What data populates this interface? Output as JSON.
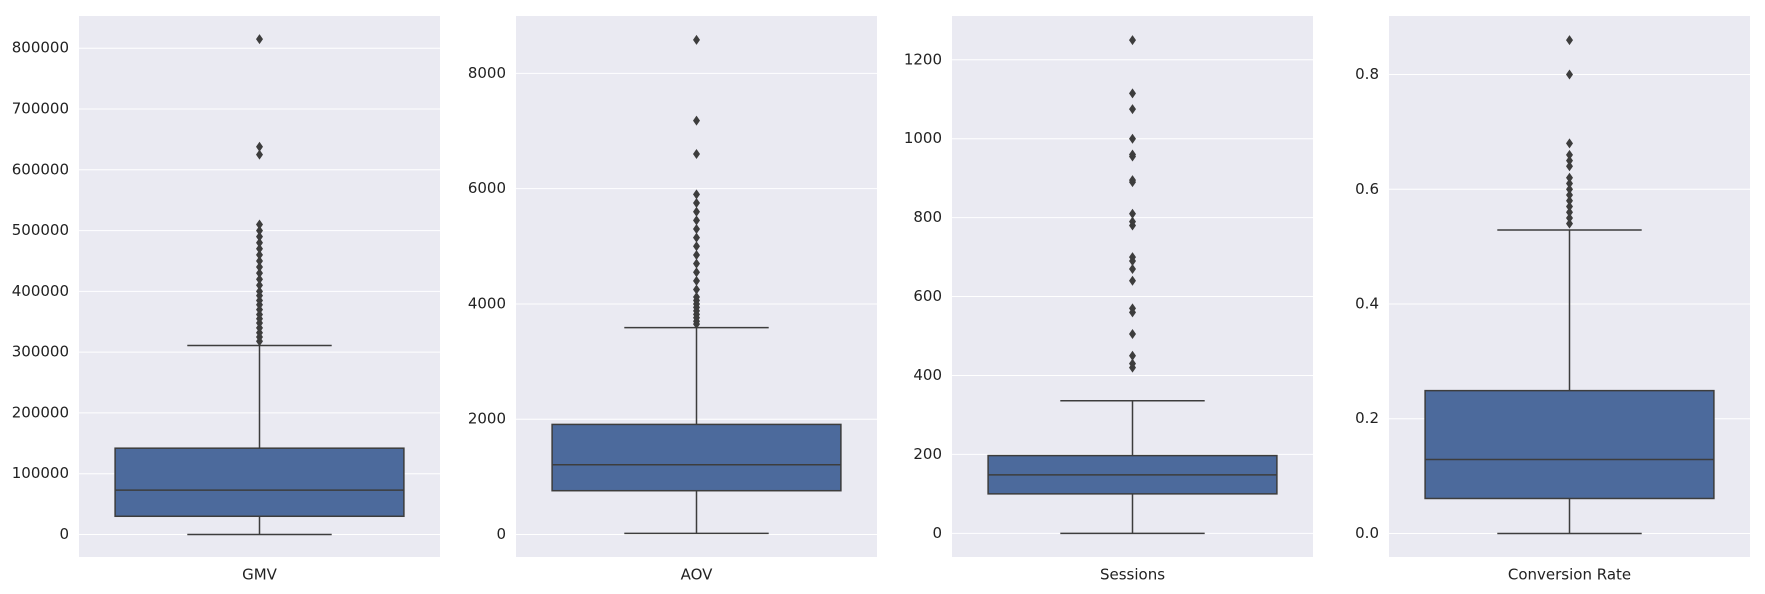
{
  "chart_data": [
    {
      "type": "box",
      "categories": [
        "GMV"
      ],
      "color": "#4c6a9c",
      "grid": true,
      "ylim": [
        -37000,
        853000
      ],
      "yticks": [
        0,
        100000,
        200000,
        300000,
        400000,
        500000,
        600000,
        700000,
        800000
      ],
      "box": {
        "whislo": 0,
        "q1": 30000,
        "med": 73000,
        "q3": 142000,
        "whishi": 311000
      },
      "fliers": [
        318000,
        325000,
        332000,
        340000,
        348000,
        355000,
        362000,
        370000,
        378000,
        385000,
        393000,
        400000,
        410000,
        420000,
        430000,
        440000,
        450000,
        460000,
        470000,
        480000,
        490000,
        500000,
        510000,
        625000,
        638000,
        815000
      ]
    },
    {
      "type": "box",
      "categories": [
        "AOV"
      ],
      "color": "#4c6a9c",
      "grid": true,
      "ylim": [
        -390,
        8995
      ],
      "yticks": [
        0,
        2000,
        4000,
        6000,
        8000
      ],
      "box": {
        "whislo": 20,
        "q1": 760,
        "med": 1210,
        "q3": 1910,
        "whishi": 3590
      },
      "fliers": [
        3650,
        3700,
        3760,
        3820,
        3880,
        3940,
        4000,
        4060,
        4120,
        4250,
        4400,
        4550,
        4700,
        4850,
        5000,
        5150,
        5300,
        5450,
        5600,
        5750,
        5900,
        6600,
        7180,
        8580
      ]
    },
    {
      "type": "box",
      "categories": [
        "Sessions"
      ],
      "color": "#4c6a9c",
      "grid": true,
      "ylim": [
        -60,
        1311
      ],
      "yticks": [
        0,
        200,
        400,
        600,
        800,
        1000,
        1200
      ],
      "box": {
        "whislo": 0,
        "q1": 100,
        "med": 148,
        "q3": 197,
        "whishi": 336
      },
      "fliers": [
        420,
        430,
        450,
        505,
        560,
        570,
        640,
        670,
        690,
        700,
        780,
        790,
        810,
        890,
        895,
        955,
        960,
        1000,
        1075,
        1115,
        1250
      ]
    },
    {
      "type": "box",
      "categories": [
        "Conversion Rate"
      ],
      "color": "#4c6a9c",
      "grid": true,
      "ylim": [
        -0.041,
        0.902
      ],
      "yticks": [
        {
          "value": 0,
          "label": "0.0"
        },
        0.2,
        0.4,
        0.6,
        0.8
      ],
      "box": {
        "whislo": 0,
        "q1": 0.061,
        "med": 0.129,
        "q3": 0.249,
        "whishi": 0.529
      },
      "fliers": [
        0.54,
        0.55,
        0.56,
        0.57,
        0.58,
        0.59,
        0.6,
        0.61,
        0.62,
        0.64,
        0.65,
        0.66,
        0.68,
        0.8,
        0.86
      ]
    }
  ]
}
